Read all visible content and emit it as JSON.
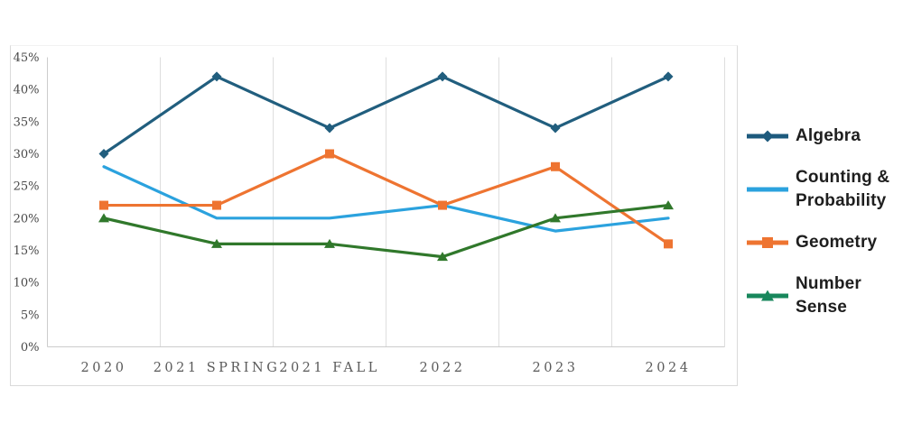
{
  "chart_data": {
    "type": "line",
    "title": "",
    "categories": [
      "2020",
      "2021 SPRING",
      "2021 FALL",
      "2022",
      "2023",
      "2024"
    ],
    "series": [
      {
        "name": "Algebra",
        "values": [
          30,
          42,
          34,
          42,
          34,
          42
        ],
        "color": "#215E7E",
        "marker": "diamond"
      },
      {
        "name": "Counting & Probability",
        "values": [
          28,
          20,
          20,
          22,
          18,
          20
        ],
        "color": "#2BA2DE",
        "marker": "none"
      },
      {
        "name": "Geometry",
        "values": [
          22,
          22,
          30,
          22,
          28,
          16
        ],
        "color": "#EE7431",
        "marker": "square"
      },
      {
        "name": "Number Sense",
        "values": [
          20,
          16,
          16,
          14,
          20,
          22
        ],
        "color": "#30782B",
        "marker": "triangle"
      }
    ],
    "xlabel": "",
    "ylabel": "",
    "ylim": [
      0,
      45
    ],
    "ytick_step": 5,
    "ytick_labels": [
      "0%",
      "5%",
      "10%",
      "15%",
      "20%",
      "25%",
      "30%",
      "35%",
      "40%",
      "45%"
    ],
    "grid": "vertical lines at category boundaries only",
    "legend_position": "right"
  },
  "legend": {
    "items": [
      {
        "label": "Algebra",
        "color": "#1D5A7D",
        "marker": "diamond"
      },
      {
        "label": "Counting & Probability",
        "color": "#2BA2DE",
        "marker": "none"
      },
      {
        "label": "Geometry",
        "color": "#EE7431",
        "marker": "square"
      },
      {
        "label": "Number Sense",
        "color": "#18875C",
        "marker": "triangle"
      }
    ]
  },
  "style_colors": {
    "ytick": "#474747",
    "xtick": "#5a5a5a",
    "gridline": "#dedede",
    "axis_line": "#cccccc",
    "panel_border": "#dadada",
    "background": "#ffffff"
  }
}
